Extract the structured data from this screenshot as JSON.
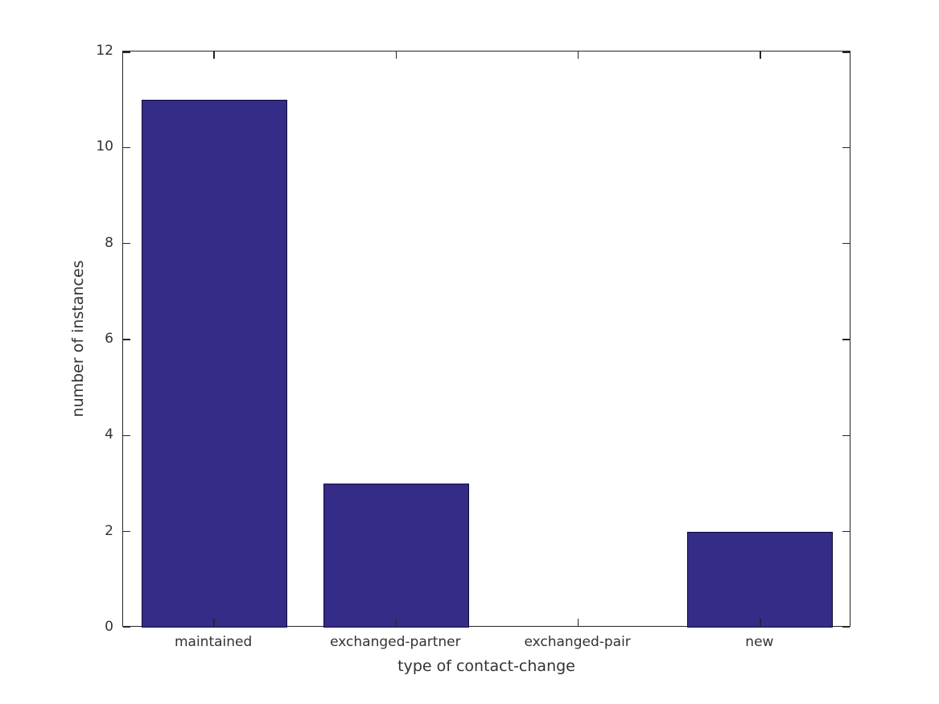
{
  "chart_data": {
    "type": "bar",
    "categories": [
      "maintained",
      "exchanged-partner",
      "exchanged-pair",
      "new"
    ],
    "values": [
      11,
      3,
      0,
      2
    ],
    "title": "",
    "xlabel": "type of contact-change",
    "ylabel": "number of instances",
    "ylim": [
      0,
      12
    ],
    "yticks": [
      0,
      2,
      4,
      6,
      8,
      10,
      12
    ],
    "bar_width_fraction": 0.8,
    "grid": false,
    "legend": null,
    "colors": {
      "bar_fill": "#352C87",
      "bar_edge": "#0f0c33",
      "axis": "#262626",
      "text": "#333333",
      "background": "#ffffff"
    }
  }
}
